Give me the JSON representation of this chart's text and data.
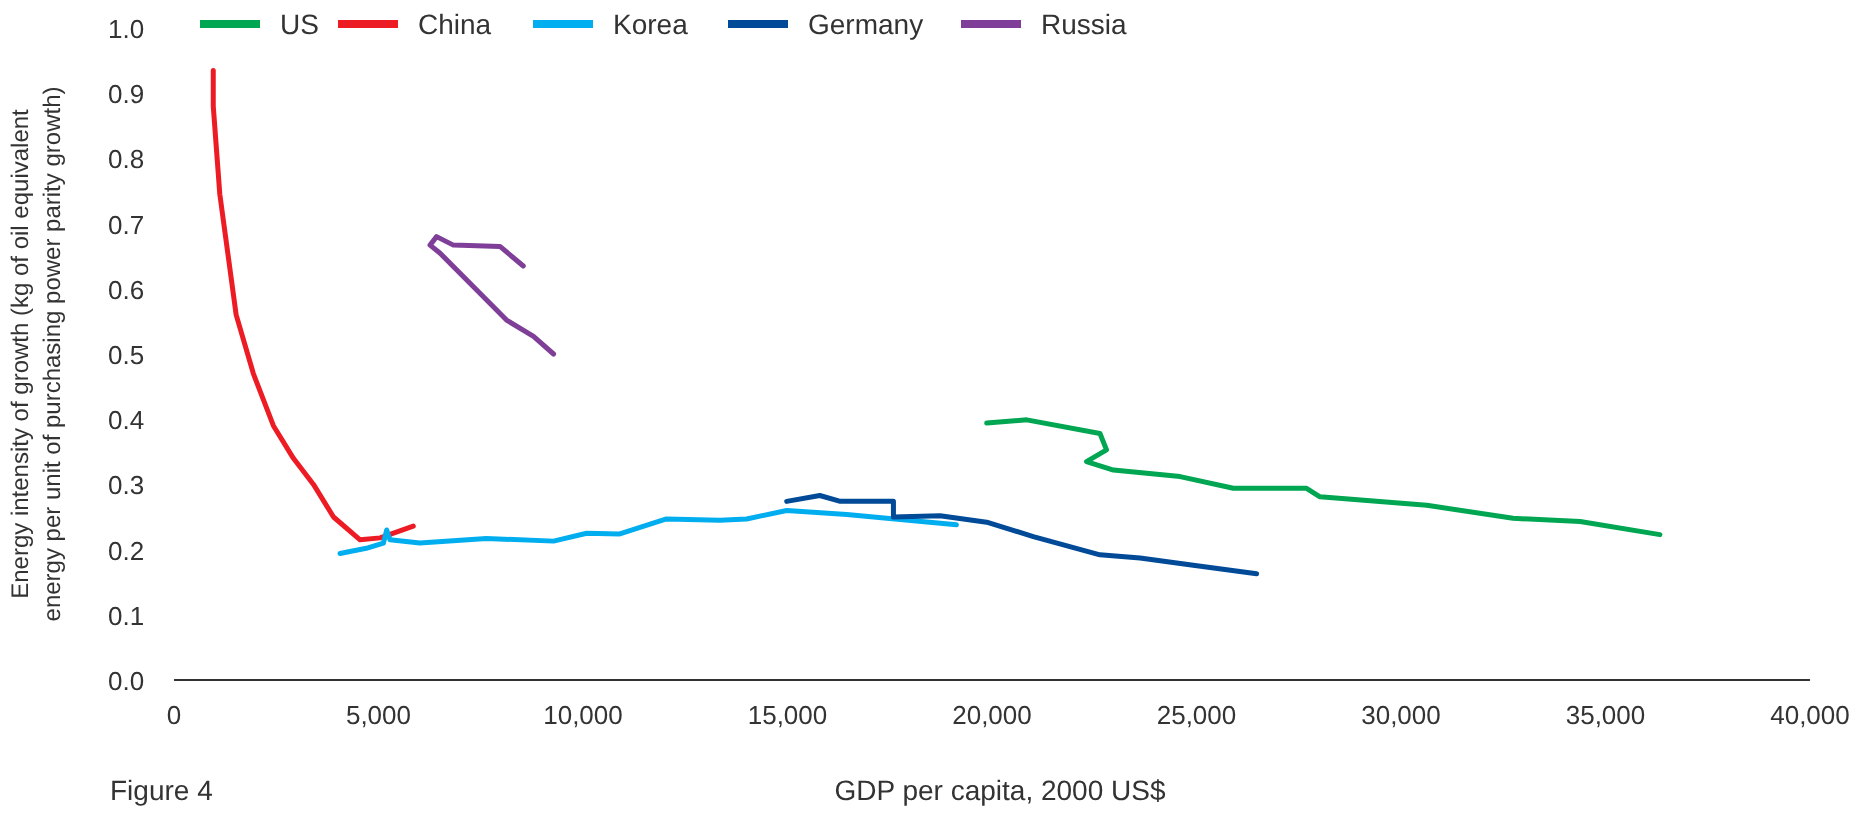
{
  "chart_data": {
    "type": "line",
    "xlabel": "GDP per capita, 2000 US$",
    "ylabel": "Energy intensity of growth (kg of oil equivalent energy per unit of purchasing power parity growth)",
    "annotations": [
      "Figure 4"
    ],
    "xlim": [
      0,
      40000
    ],
    "xticks": [
      {
        "value": 0,
        "label": "0"
      },
      {
        "value": 5000,
        "label": "5,000"
      },
      {
        "value": 10000,
        "label": "10,000"
      },
      {
        "value": 15000,
        "label": "15,000"
      },
      {
        "value": 20000,
        "label": "20,000"
      },
      {
        "value": 25000,
        "label": "25,000"
      },
      {
        "value": 30000,
        "label": "30,000"
      },
      {
        "value": 35000,
        "label": "35,000"
      },
      {
        "value": 40000,
        "label": "40,000"
      }
    ],
    "ylim": [
      0,
      1
    ],
    "yticks": [
      {
        "value": 0,
        "label": "0.0"
      },
      {
        "value": 0.1,
        "label": "0.1"
      },
      {
        "value": 0.2,
        "label": "0.2"
      },
      {
        "value": 0.3,
        "label": "0.3"
      },
      {
        "value": 0.4,
        "label": "0.4"
      },
      {
        "value": 0.5,
        "label": "0.5"
      },
      {
        "value": 0.6,
        "label": "0.6"
      },
      {
        "value": 0.7,
        "label": "0.7"
      },
      {
        "value": 0.8,
        "label": "0.8"
      },
      {
        "value": 0.9,
        "label": "0.9"
      },
      {
        "value": 1,
        "label": "1.0"
      }
    ],
    "grid": false,
    "legend": "top",
    "marker": "none",
    "line_style": "solid",
    "series": [
      {
        "name": "US",
        "color": "#00a651",
        "x": [
          19870,
          20850,
          22640,
          22800,
          22310,
          22970,
          24600,
          25900,
          27690,
          28020,
          30630,
          32740,
          34380,
          36330
        ],
        "values": [
          0.394,
          0.399,
          0.378,
          0.353,
          0.335,
          0.322,
          0.312,
          0.294,
          0.294,
          0.281,
          0.268,
          0.248,
          0.243,
          0.223
        ]
      },
      {
        "name": "China",
        "color": "#ed1c24",
        "x": [
          960,
          960,
          1120,
          1520,
          1940,
          2430,
          2920,
          3410,
          3900,
          4550,
          5040,
          5850
        ],
        "values": [
          0.935,
          0.88,
          0.745,
          0.56,
          0.47,
          0.39,
          0.34,
          0.3,
          0.25,
          0.215,
          0.218,
          0.236
        ]
      },
      {
        "name": "Korea",
        "color": "#00aeef",
        "x": [
          4060,
          4700,
          5120,
          5200,
          5280,
          6010,
          7640,
          9280,
          10090,
          10900,
          12040,
          13350,
          14000,
          14980,
          16450,
          19130
        ],
        "values": [
          0.194,
          0.202,
          0.21,
          0.23,
          0.215,
          0.21,
          0.217,
          0.213,
          0.225,
          0.224,
          0.247,
          0.245,
          0.247,
          0.26,
          0.254,
          0.238
        ]
      },
      {
        "name": "Germany",
        "color": "#004a97",
        "x": [
          14980,
          15790,
          16290,
          17590,
          17590,
          18730,
          19870,
          21010,
          22640,
          23620,
          24920,
          26470
        ],
        "values": [
          0.274,
          0.283,
          0.274,
          0.274,
          0.25,
          0.252,
          0.242,
          0.22,
          0.192,
          0.187,
          0.176,
          0.163
        ]
      },
      {
        "name": "Russia",
        "color": "#7f3f98",
        "x": [
          8540,
          7970,
          6830,
          6420,
          6260,
          6500,
          7480,
          8130,
          8790,
          9280
        ],
        "values": [
          0.635,
          0.665,
          0.667,
          0.68,
          0.667,
          0.655,
          0.593,
          0.552,
          0.527,
          0.5
        ]
      }
    ]
  }
}
